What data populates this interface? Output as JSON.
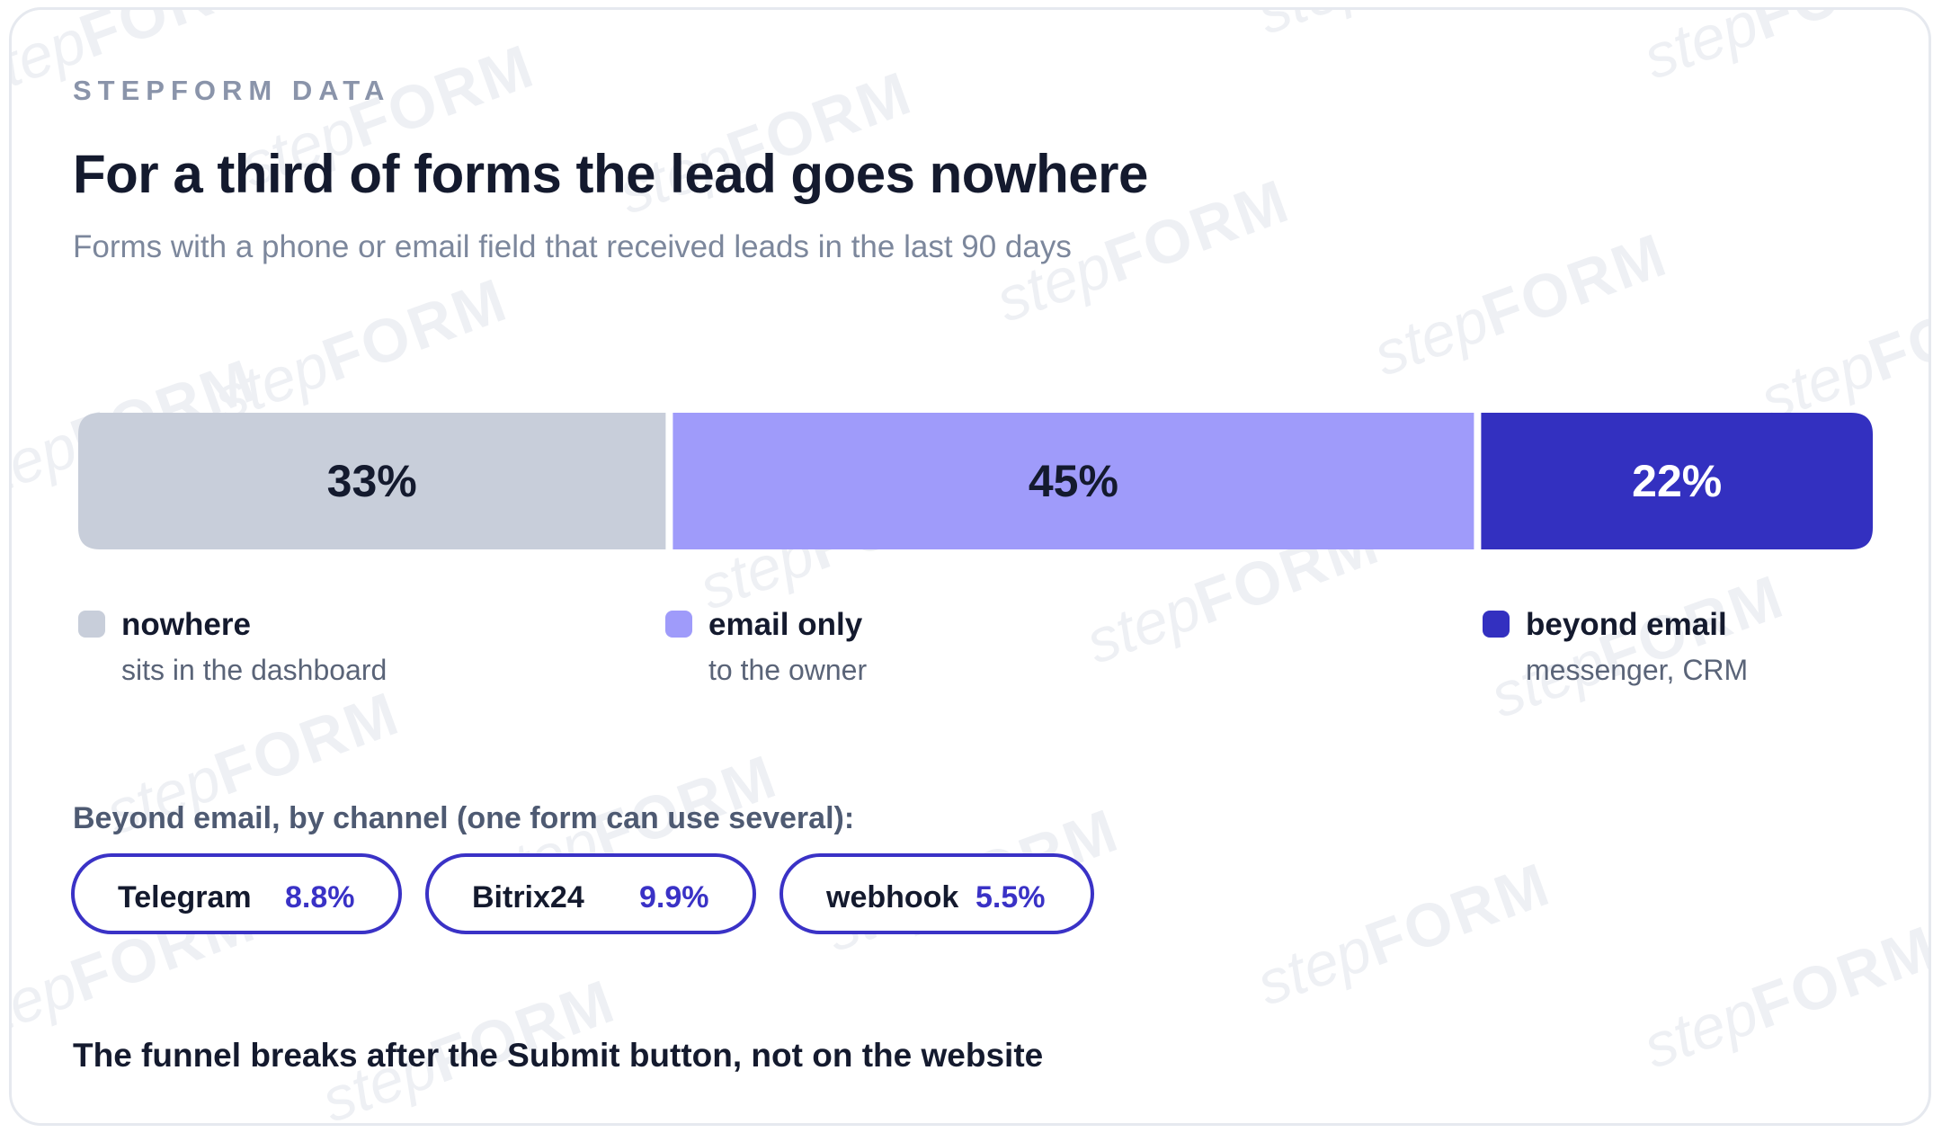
{
  "brand": "STEPFORM DATA",
  "title": "For a third of forms the lead goes nowhere",
  "subtitle": "Forms with a phone or email field that received leads in the last 90 days",
  "chart_data": {
    "type": "bar",
    "orientation": "horizontal-stacked",
    "categories": [
      "nowhere",
      "email only",
      "beyond email"
    ],
    "values": [
      33,
      45,
      22
    ],
    "value_labels": [
      "33%",
      "45%",
      "22%"
    ],
    "unit": "%",
    "colors": [
      "#c8ceda",
      "#9f9bfa",
      "#3330c0"
    ],
    "label_colors": [
      "#141a2e",
      "#141a2e",
      "#ffffff"
    ]
  },
  "legend": [
    {
      "title": "nowhere",
      "description": "sits in the dashboard",
      "color": "#c8ceda"
    },
    {
      "title": "email only",
      "description": "to the owner",
      "color": "#9f9bfa"
    },
    {
      "title": "beyond email",
      "description": "messenger, CRM",
      "color": "#3330c0"
    }
  ],
  "channels": {
    "heading": "Beyond email, by channel (one form can use several):",
    "items": [
      {
        "name": "Telegram",
        "value": "8.8%"
      },
      {
        "name": "Bitrix24",
        "value": "9.9%"
      },
      {
        "name": "webhook",
        "value": "5.5%"
      }
    ]
  },
  "footer": "The funnel breaks after the Submit button, not on the website",
  "watermark": "stepFORM"
}
